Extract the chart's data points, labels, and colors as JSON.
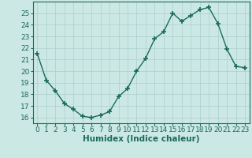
{
  "xlabel": "Humidex (Indice chaleur)",
  "ylabel": "",
  "x": [
    0,
    1,
    2,
    3,
    4,
    5,
    6,
    7,
    8,
    9,
    10,
    11,
    12,
    13,
    14,
    15,
    16,
    17,
    18,
    19,
    20,
    21,
    22,
    23
  ],
  "y": [
    21.5,
    19.2,
    18.3,
    17.2,
    16.7,
    16.1,
    16.0,
    16.2,
    16.5,
    17.8,
    18.5,
    20.0,
    21.1,
    22.8,
    23.4,
    25.0,
    24.3,
    24.8,
    25.3,
    25.5,
    24.1,
    21.9,
    20.4,
    20.3
  ],
  "line_color": "#1a6b5a",
  "marker": "+",
  "marker_size": 4,
  "marker_lw": 1.2,
  "bg_color": "#cce8e4",
  "grid_color": "#aacfcb",
  "axis_color": "#1a6b5a",
  "tick_color": "#1a6b5a",
  "label_color": "#1a6b5a",
  "ylim": [
    15.5,
    26.0
  ],
  "yticks": [
    16,
    17,
    18,
    19,
    20,
    21,
    22,
    23,
    24,
    25
  ],
  "xlim": [
    -0.5,
    23.5
  ],
  "xtick_labels": [
    "0",
    "1",
    "2",
    "3",
    "4",
    "5",
    "6",
    "7",
    "8",
    "9",
    "10",
    "11",
    "12",
    "13",
    "14",
    "15",
    "16",
    "17",
    "18",
    "19",
    "20",
    "21",
    "22",
    "23"
  ],
  "font_size": 6.5,
  "xlabel_fontsize": 7.5,
  "line_width": 1.0
}
